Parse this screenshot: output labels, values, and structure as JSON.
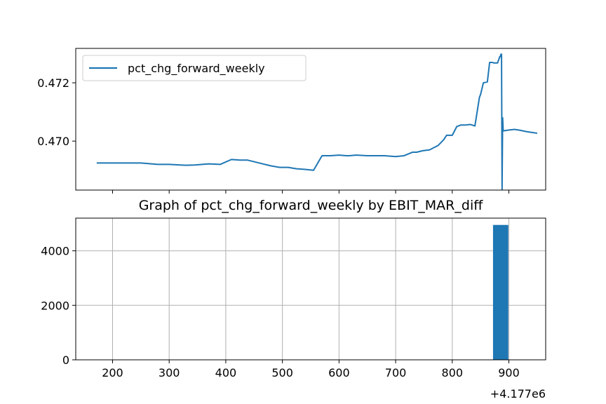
{
  "chart_data": [
    {
      "type": "line",
      "title": "",
      "xlabel": "",
      "ylabel": "",
      "xlim": [
        4177135,
        4177965
      ],
      "ylim": [
        0.46832,
        0.47318
      ],
      "y_ticks": [
        0.47,
        0.472
      ],
      "y_tick_labels": [
        "0.470",
        "0.472"
      ],
      "x_ticks": [
        4177200,
        4177300,
        4177400,
        4177500,
        4177600,
        4177700,
        4177800,
        4177900
      ],
      "grid": false,
      "legend_position": "top-left",
      "series": [
        {
          "name": "pct_chg_forward_weekly",
          "color": "#1f77b4",
          "x": [
            4177172,
            4177200,
            4177250,
            4177280,
            4177300,
            4177330,
            4177345,
            4177370,
            4177390,
            4177410,
            4177425,
            4177438,
            4177465,
            4177480,
            4177495,
            4177510,
            4177525,
            4177540,
            4177555,
            4177570,
            4177585,
            4177600,
            4177613,
            4177618,
            4177630,
            4177650,
            4177665,
            4177680,
            4177700,
            4177715,
            4177730,
            4177737,
            4177748,
            4177760,
            4177775,
            4177785,
            4177790,
            4177800,
            4177808,
            4177815,
            4177818,
            4177822,
            4177832,
            4177840,
            4177848,
            4177850,
            4177855,
            4177862,
            4177866,
            4177870,
            4177874,
            4177880,
            4177884,
            4177885,
            4177886,
            4177887,
            4177888,
            4177889,
            4177890,
            4177900,
            4177910,
            4177920,
            4177930,
            4177940,
            4177950
          ],
          "y": [
            0.46925,
            0.46925,
            0.46925,
            0.4692,
            0.4692,
            0.46917,
            0.46918,
            0.46922,
            0.4692,
            0.46937,
            0.46935,
            0.46935,
            0.46922,
            0.46915,
            0.4691,
            0.4691,
            0.46905,
            0.46903,
            0.469,
            0.4695,
            0.4695,
            0.46952,
            0.4695,
            0.4695,
            0.46952,
            0.4695,
            0.4695,
            0.4695,
            0.46947,
            0.4695,
            0.46962,
            0.46962,
            0.46967,
            0.4697,
            0.46985,
            0.47005,
            0.4702,
            0.4702,
            0.4705,
            0.47055,
            0.47055,
            0.47055,
            0.47057,
            0.47052,
            0.4715,
            0.4716,
            0.472,
            0.47203,
            0.4727,
            0.4727,
            0.47268,
            0.47268,
            0.4729,
            0.4729,
            0.47298,
            0.47298,
            0.46835,
            0.4708,
            0.47035,
            0.47038,
            0.4704,
            0.47037,
            0.47033,
            0.4703,
            0.47027
          ]
        }
      ]
    },
    {
      "type": "bar",
      "title": "Graph of pct_chg_forward_weekly by EBIT_MAR_diff",
      "xlabel": "",
      "ylabel": "",
      "xlim": [
        4177135,
        4177965
      ],
      "ylim": [
        0,
        5200
      ],
      "y_ticks": [
        0,
        2000,
        4000
      ],
      "y_tick_labels": [
        "0",
        "2000",
        "4000"
      ],
      "x_ticks": [
        4177200,
        4177300,
        4177400,
        4177500,
        4177600,
        4177700,
        4177800,
        4177900
      ],
      "x_tick_labels": [
        "200",
        "300",
        "400",
        "500",
        "600",
        "700",
        "800",
        "900"
      ],
      "x_offset_label": "+4.177e6",
      "grid": true,
      "bars": [
        {
          "x_start": 4177872,
          "x_end": 4177899,
          "value": 4950,
          "color": "#1f77b4"
        }
      ]
    }
  ]
}
